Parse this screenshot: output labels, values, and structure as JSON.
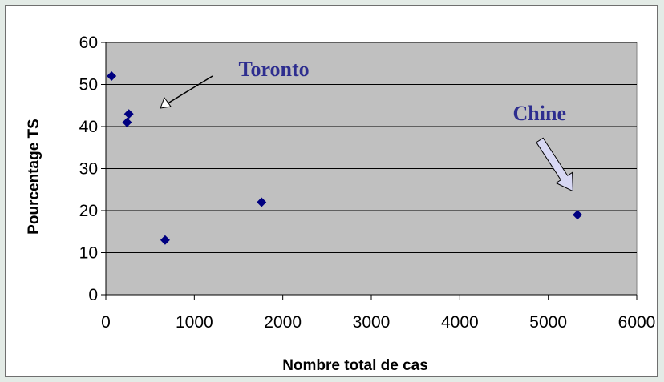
{
  "chart_data": {
    "type": "scatter",
    "title": "",
    "xlabel": "Nombre total de cas",
    "ylabel": "Pourcentage TS",
    "xlim": [
      0,
      6000
    ],
    "ylim": [
      0,
      60
    ],
    "xticks": [
      0,
      1000,
      2000,
      3000,
      4000,
      5000,
      6000
    ],
    "yticks": [
      0,
      10,
      20,
      30,
      40,
      50,
      60
    ],
    "grid": "horizontal",
    "legend": "none",
    "plot_background": "#c0c0c0",
    "marker_color": "#000080",
    "points": [
      {
        "x": 65,
        "y": 52
      },
      {
        "x": 240,
        "y": 41
      },
      {
        "x": 260,
        "y": 43
      },
      {
        "x": 670,
        "y": 13
      },
      {
        "x": 1760,
        "y": 22
      },
      {
        "x": 5330,
        "y": 19
      }
    ],
    "annotations": [
      {
        "text": "Toronto",
        "x": 1500,
        "y": 52
      },
      {
        "text": "Chine",
        "x": 4600,
        "y": 41.5
      }
    ]
  }
}
